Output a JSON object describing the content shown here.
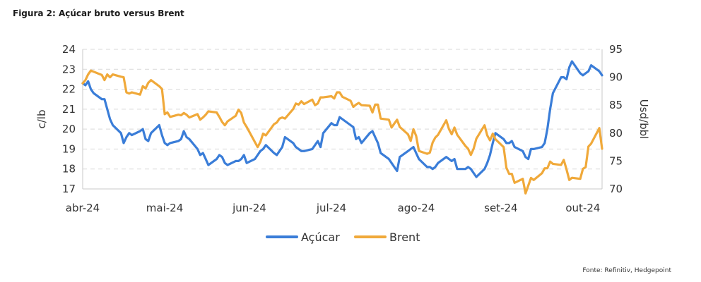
{
  "figure": {
    "title": "Figura 2: Açúcar bruto versus Brent",
    "source": "Fonte: Refinitiv, Hedgepoint"
  },
  "chart_data": {
    "type": "line",
    "x_tick_labels": [
      "abr-24",
      "mai-24",
      "jun-24",
      "jul-24",
      "ago-24",
      "set-24",
      "out-24"
    ],
    "x_tick_dates": [
      "2024-04-01",
      "2024-05-01",
      "2024-06-01",
      "2024-07-01",
      "2024-08-01",
      "2024-09-01",
      "2024-10-01"
    ],
    "y_left": {
      "label": "c/lb",
      "ylim": [
        17,
        24
      ],
      "ticks": [
        17,
        18,
        19,
        20,
        21,
        22,
        23,
        24
      ]
    },
    "y_right": {
      "label": "Usd/bbl",
      "ylim": [
        70,
        95
      ],
      "ticks": [
        70,
        75,
        80,
        85,
        90,
        95
      ]
    },
    "grid": true,
    "legend_position": "bottom",
    "series": [
      {
        "name": "Açúcar",
        "axis": "left",
        "color": "#3a7dd8",
        "points": [
          [
            "2024-04-01",
            22.3
          ],
          [
            "2024-04-02",
            22.2
          ],
          [
            "2024-04-03",
            22.4
          ],
          [
            "2024-04-04",
            22.0
          ],
          [
            "2024-04-05",
            21.8
          ],
          [
            "2024-04-08",
            21.5
          ],
          [
            "2024-04-09",
            21.5
          ],
          [
            "2024-04-10",
            21.0
          ],
          [
            "2024-04-11",
            20.5
          ],
          [
            "2024-04-12",
            20.2
          ],
          [
            "2024-04-15",
            19.8
          ],
          [
            "2024-04-16",
            19.3
          ],
          [
            "2024-04-17",
            19.6
          ],
          [
            "2024-04-18",
            19.8
          ],
          [
            "2024-04-19",
            19.7
          ],
          [
            "2024-04-22",
            19.9
          ],
          [
            "2024-04-23",
            20.0
          ],
          [
            "2024-04-24",
            19.5
          ],
          [
            "2024-04-25",
            19.4
          ],
          [
            "2024-04-26",
            19.8
          ],
          [
            "2024-04-29",
            20.2
          ],
          [
            "2024-04-30",
            19.7
          ],
          [
            "2024-05-01",
            19.3
          ],
          [
            "2024-05-02",
            19.2
          ],
          [
            "2024-05-03",
            19.3
          ],
          [
            "2024-05-06",
            19.4
          ],
          [
            "2024-05-07",
            19.5
          ],
          [
            "2024-05-08",
            19.9
          ],
          [
            "2024-05-09",
            19.6
          ],
          [
            "2024-05-10",
            19.5
          ],
          [
            "2024-05-13",
            19.0
          ],
          [
            "2024-05-14",
            18.7
          ],
          [
            "2024-05-15",
            18.8
          ],
          [
            "2024-05-16",
            18.5
          ],
          [
            "2024-05-17",
            18.2
          ],
          [
            "2024-05-20",
            18.5
          ],
          [
            "2024-05-21",
            18.7
          ],
          [
            "2024-05-22",
            18.6
          ],
          [
            "2024-05-23",
            18.3
          ],
          [
            "2024-05-24",
            18.2
          ],
          [
            "2024-05-27",
            18.4
          ],
          [
            "2024-05-28",
            18.4
          ],
          [
            "2024-05-29",
            18.5
          ],
          [
            "2024-05-30",
            18.7
          ],
          [
            "2024-05-31",
            18.3
          ],
          [
            "2024-06-03",
            18.5
          ],
          [
            "2024-06-04",
            18.7
          ],
          [
            "2024-06-05",
            18.9
          ],
          [
            "2024-06-06",
            19.0
          ],
          [
            "2024-06-07",
            19.2
          ],
          [
            "2024-06-10",
            18.8
          ],
          [
            "2024-06-11",
            18.7
          ],
          [
            "2024-06-12",
            18.9
          ],
          [
            "2024-06-13",
            19.1
          ],
          [
            "2024-06-14",
            19.6
          ],
          [
            "2024-06-17",
            19.3
          ],
          [
            "2024-06-18",
            19.1
          ],
          [
            "2024-06-19",
            19.0
          ],
          [
            "2024-06-20",
            18.9
          ],
          [
            "2024-06-21",
            18.9
          ],
          [
            "2024-06-24",
            19.0
          ],
          [
            "2024-06-25",
            19.2
          ],
          [
            "2024-06-26",
            19.4
          ],
          [
            "2024-06-27",
            19.1
          ],
          [
            "2024-06-28",
            19.8
          ],
          [
            "2024-07-01",
            20.3
          ],
          [
            "2024-07-02",
            20.2
          ],
          [
            "2024-07-03",
            20.2
          ],
          [
            "2024-07-04",
            20.6
          ],
          [
            "2024-07-05",
            20.5
          ],
          [
            "2024-07-08",
            20.2
          ],
          [
            "2024-07-09",
            20.1
          ],
          [
            "2024-07-10",
            19.5
          ],
          [
            "2024-07-11",
            19.6
          ],
          [
            "2024-07-12",
            19.3
          ],
          [
            "2024-07-15",
            19.8
          ],
          [
            "2024-07-16",
            19.9
          ],
          [
            "2024-07-17",
            19.6
          ],
          [
            "2024-07-18",
            19.3
          ],
          [
            "2024-07-19",
            18.8
          ],
          [
            "2024-07-22",
            18.5
          ],
          [
            "2024-07-23",
            18.3
          ],
          [
            "2024-07-24",
            18.1
          ],
          [
            "2024-07-25",
            17.9
          ],
          [
            "2024-07-26",
            18.6
          ],
          [
            "2024-07-29",
            18.9
          ],
          [
            "2024-07-30",
            19.0
          ],
          [
            "2024-07-31",
            19.1
          ],
          [
            "2024-08-01",
            18.8
          ],
          [
            "2024-08-02",
            18.5
          ],
          [
            "2024-08-05",
            18.1
          ],
          [
            "2024-08-06",
            18.1
          ],
          [
            "2024-08-07",
            18.0
          ],
          [
            "2024-08-08",
            18.1
          ],
          [
            "2024-08-09",
            18.3
          ],
          [
            "2024-08-12",
            18.6
          ],
          [
            "2024-08-13",
            18.5
          ],
          [
            "2024-08-14",
            18.4
          ],
          [
            "2024-08-15",
            18.5
          ],
          [
            "2024-08-16",
            18.0
          ],
          [
            "2024-08-19",
            18.0
          ],
          [
            "2024-08-20",
            18.1
          ],
          [
            "2024-08-21",
            18.0
          ],
          [
            "2024-08-22",
            17.8
          ],
          [
            "2024-08-23",
            17.6
          ],
          [
            "2024-08-26",
            18.0
          ],
          [
            "2024-08-27",
            18.3
          ],
          [
            "2024-08-28",
            18.7
          ],
          [
            "2024-08-29",
            19.3
          ],
          [
            "2024-08-30",
            19.8
          ],
          [
            "2024-09-02",
            19.5
          ],
          [
            "2024-09-03",
            19.3
          ],
          [
            "2024-09-04",
            19.3
          ],
          [
            "2024-09-05",
            19.4
          ],
          [
            "2024-09-06",
            19.1
          ],
          [
            "2024-09-09",
            18.9
          ],
          [
            "2024-09-10",
            18.6
          ],
          [
            "2024-09-11",
            18.5
          ],
          [
            "2024-09-12",
            19.0
          ],
          [
            "2024-09-13",
            19.0
          ],
          [
            "2024-09-16",
            19.1
          ],
          [
            "2024-09-17",
            19.3
          ],
          [
            "2024-09-18",
            20.0
          ],
          [
            "2024-09-19",
            21.0
          ],
          [
            "2024-09-20",
            21.8
          ],
          [
            "2024-09-23",
            22.6
          ],
          [
            "2024-09-24",
            22.6
          ],
          [
            "2024-09-25",
            22.5
          ],
          [
            "2024-09-26",
            23.1
          ],
          [
            "2024-09-27",
            23.4
          ],
          [
            "2024-09-30",
            22.8
          ],
          [
            "2024-10-01",
            22.7
          ],
          [
            "2024-10-02",
            22.8
          ],
          [
            "2024-10-03",
            22.9
          ],
          [
            "2024-10-04",
            23.2
          ],
          [
            "2024-10-07",
            22.9
          ],
          [
            "2024-10-08",
            22.7
          ]
        ]
      },
      {
        "name": "Brent",
        "axis": "right",
        "color": "#f0a93a",
        "points": [
          [
            "2024-04-01",
            88.9
          ],
          [
            "2024-04-02",
            89.5
          ],
          [
            "2024-04-03",
            90.5
          ],
          [
            "2024-04-04",
            91.2
          ],
          [
            "2024-04-05",
            91.0
          ],
          [
            "2024-04-08",
            90.4
          ],
          [
            "2024-04-09",
            89.5
          ],
          [
            "2024-04-10",
            90.5
          ],
          [
            "2024-04-11",
            90.0
          ],
          [
            "2024-04-12",
            90.5
          ],
          [
            "2024-04-15",
            90.1
          ],
          [
            "2024-04-16",
            90.0
          ],
          [
            "2024-04-17",
            87.3
          ],
          [
            "2024-04-18",
            87.1
          ],
          [
            "2024-04-19",
            87.3
          ],
          [
            "2024-04-22",
            86.9
          ],
          [
            "2024-04-23",
            88.4
          ],
          [
            "2024-04-24",
            88.0
          ],
          [
            "2024-04-25",
            89.0
          ],
          [
            "2024-04-26",
            89.5
          ],
          [
            "2024-04-29",
            88.4
          ],
          [
            "2024-04-30",
            87.9
          ],
          [
            "2024-05-01",
            83.4
          ],
          [
            "2024-05-02",
            83.7
          ],
          [
            "2024-05-03",
            82.9
          ],
          [
            "2024-05-06",
            83.3
          ],
          [
            "2024-05-07",
            83.2
          ],
          [
            "2024-05-08",
            83.6
          ],
          [
            "2024-05-09",
            83.3
          ],
          [
            "2024-05-10",
            82.8
          ],
          [
            "2024-05-13",
            83.4
          ],
          [
            "2024-05-14",
            82.4
          ],
          [
            "2024-05-15",
            82.8
          ],
          [
            "2024-05-16",
            83.3
          ],
          [
            "2024-05-17",
            83.9
          ],
          [
            "2024-05-20",
            83.7
          ],
          [
            "2024-05-21",
            82.9
          ],
          [
            "2024-05-22",
            82.0
          ],
          [
            "2024-05-23",
            81.4
          ],
          [
            "2024-05-24",
            82.1
          ],
          [
            "2024-05-27",
            83.1
          ],
          [
            "2024-05-28",
            84.2
          ],
          [
            "2024-05-29",
            83.6
          ],
          [
            "2024-05-30",
            81.9
          ],
          [
            "2024-05-31",
            81.1
          ],
          [
            "2024-06-03",
            78.4
          ],
          [
            "2024-06-04",
            77.5
          ],
          [
            "2024-06-05",
            78.4
          ],
          [
            "2024-06-06",
            79.9
          ],
          [
            "2024-06-07",
            79.6
          ],
          [
            "2024-06-10",
            81.6
          ],
          [
            "2024-06-11",
            81.9
          ],
          [
            "2024-06-12",
            82.6
          ],
          [
            "2024-06-13",
            82.8
          ],
          [
            "2024-06-14",
            82.6
          ],
          [
            "2024-06-17",
            84.3
          ],
          [
            "2024-06-18",
            85.3
          ],
          [
            "2024-06-19",
            85.1
          ],
          [
            "2024-06-20",
            85.7
          ],
          [
            "2024-06-21",
            85.2
          ],
          [
            "2024-06-24",
            86.0
          ],
          [
            "2024-06-25",
            85.0
          ],
          [
            "2024-06-26",
            85.3
          ],
          [
            "2024-06-27",
            86.4
          ],
          [
            "2024-06-28",
            86.4
          ],
          [
            "2024-07-01",
            86.6
          ],
          [
            "2024-07-02",
            86.2
          ],
          [
            "2024-07-03",
            87.3
          ],
          [
            "2024-07-04",
            87.3
          ],
          [
            "2024-07-05",
            86.5
          ],
          [
            "2024-07-08",
            85.8
          ],
          [
            "2024-07-09",
            84.7
          ],
          [
            "2024-07-10",
            85.1
          ],
          [
            "2024-07-11",
            85.4
          ],
          [
            "2024-07-12",
            85.0
          ],
          [
            "2024-07-15",
            84.9
          ],
          [
            "2024-07-16",
            83.7
          ],
          [
            "2024-07-17",
            85.1
          ],
          [
            "2024-07-18",
            85.1
          ],
          [
            "2024-07-19",
            82.6
          ],
          [
            "2024-07-22",
            82.4
          ],
          [
            "2024-07-23",
            81.0
          ],
          [
            "2024-07-24",
            81.7
          ],
          [
            "2024-07-25",
            82.4
          ],
          [
            "2024-07-26",
            81.1
          ],
          [
            "2024-07-29",
            79.8
          ],
          [
            "2024-07-30",
            78.6
          ],
          [
            "2024-07-31",
            80.7
          ],
          [
            "2024-08-01",
            79.5
          ],
          [
            "2024-08-02",
            76.8
          ],
          [
            "2024-08-05",
            76.3
          ],
          [
            "2024-08-06",
            76.5
          ],
          [
            "2024-08-07",
            78.3
          ],
          [
            "2024-08-08",
            79.2
          ],
          [
            "2024-08-09",
            79.7
          ],
          [
            "2024-08-12",
            82.3
          ],
          [
            "2024-08-13",
            80.7
          ],
          [
            "2024-08-14",
            79.8
          ],
          [
            "2024-08-15",
            81.0
          ],
          [
            "2024-08-16",
            79.7
          ],
          [
            "2024-08-19",
            77.7
          ],
          [
            "2024-08-20",
            77.2
          ],
          [
            "2024-08-21",
            76.1
          ],
          [
            "2024-08-22",
            77.2
          ],
          [
            "2024-08-23",
            79.0
          ],
          [
            "2024-08-26",
            81.4
          ],
          [
            "2024-08-27",
            79.6
          ],
          [
            "2024-08-28",
            78.7
          ],
          [
            "2024-08-29",
            79.9
          ],
          [
            "2024-08-30",
            78.9
          ],
          [
            "2024-09-02",
            77.5
          ],
          [
            "2024-09-03",
            73.8
          ],
          [
            "2024-09-04",
            72.7
          ],
          [
            "2024-09-05",
            72.7
          ],
          [
            "2024-09-06",
            71.1
          ],
          [
            "2024-09-09",
            71.8
          ],
          [
            "2024-09-10",
            69.2
          ],
          [
            "2024-09-11",
            70.6
          ],
          [
            "2024-09-12",
            71.97
          ],
          [
            "2024-09-13",
            71.6
          ],
          [
            "2024-09-16",
            72.8
          ],
          [
            "2024-09-17",
            73.7
          ],
          [
            "2024-09-18",
            73.7
          ],
          [
            "2024-09-19",
            74.9
          ],
          [
            "2024-09-20",
            74.5
          ],
          [
            "2024-09-23",
            74.3
          ],
          [
            "2024-09-24",
            75.2
          ],
          [
            "2024-09-25",
            73.5
          ],
          [
            "2024-09-26",
            71.6
          ],
          [
            "2024-09-27",
            72.0
          ],
          [
            "2024-09-30",
            71.8
          ],
          [
            "2024-10-01",
            73.6
          ],
          [
            "2024-10-02",
            73.9
          ],
          [
            "2024-10-03",
            77.6
          ],
          [
            "2024-10-04",
            78.1
          ],
          [
            "2024-10-07",
            80.9
          ],
          [
            "2024-10-08",
            77.2
          ]
        ]
      }
    ]
  }
}
